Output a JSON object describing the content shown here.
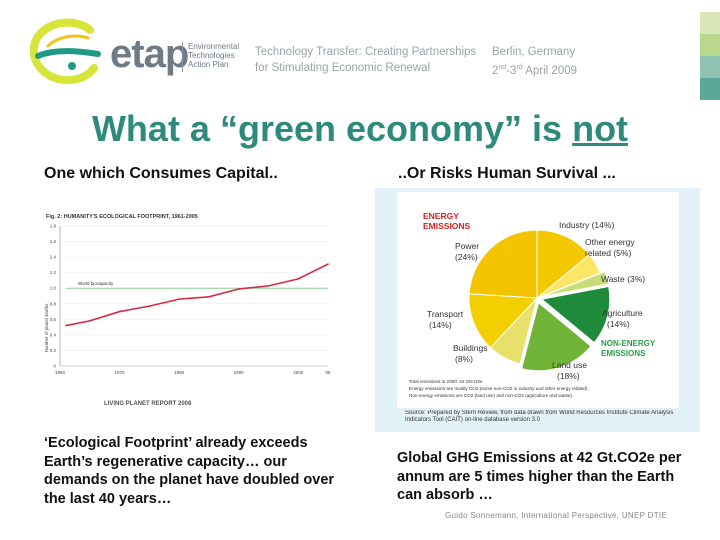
{
  "header": {
    "brand": "etap",
    "brand_sub": [
      "Environmental",
      "Technologies",
      "Action Plan"
    ],
    "tagline": [
      "Technology Transfer: Creating Partnerships",
      "for Stimulating Economic Renewal"
    ],
    "location": "Berlin, Germany",
    "date_day": "2",
    "date_sup1": "nd",
    "date_mid": "-3",
    "date_sup2": "rd",
    "date_rest": " April 2009"
  },
  "slide": {
    "title_main": "What a “green economy” is ",
    "title_emph": "not",
    "left_heading": "One which Consumes Capital..",
    "right_heading": "..Or Risks Human Survival ...",
    "left_paragraph": "‘Ecological Footprint’ already exceeds Earth’s regenerative capacity… our demands on the planet have doubled over the last 40 years…",
    "right_paragraph": "Global GHG Emissions at 42 Gt.CO2e per annum are 5 times higher than the Earth can absorb …",
    "credit": "Guido Sonnemann, International Perspective, UNEP DTIE"
  },
  "footprint_chart": {
    "title": "Fig. 2: HUMANITY'S ECOLOGICAL FOOTPRINT, 1961-2005",
    "ylabel": "Number of planet Earths",
    "capacity_label": "World biocapacity",
    "source": "LIVING PLANET REPORT 2008",
    "yticks": [
      "1.8",
      "1.6",
      "1.4",
      "1.2",
      "1.0",
      "0.8",
      "0.6",
      "0.4",
      "0.2",
      "0"
    ],
    "xticks": [
      "1960",
      "1970",
      "1980",
      "1990",
      "2000",
      "05"
    ]
  },
  "pie_chart": {
    "energy_label": [
      "ENERGY",
      "EMISSIONS"
    ],
    "non_energy_label": [
      "NON-ENERGY",
      "EMISSIONS"
    ],
    "labels": {
      "industry": "Industry (14%)",
      "other": [
        "Other energy",
        "related (5%)"
      ],
      "waste": "Waste (3%)",
      "agriculture": [
        "Agriculture",
        "(14%)"
      ],
      "landuse": [
        "Land use",
        "(18%)"
      ],
      "buildings": [
        "Buildings",
        "(8%)"
      ],
      "transport": [
        "Transport",
        "(14%)"
      ],
      "power": [
        "Power",
        "(24%)"
      ]
    },
    "total_note": "Total emissions in 2000: 42 GtCO2e",
    "note2": "Energy emissions are mostly CO2 (some non-CO2 in industry and other energy related).",
    "note3": "Non-energy emissions are CO2 (land use) and non-CO2 (agriculture and waste).",
    "source": "Source:   Prepared by Stern Review, from data drawn from World Resources Institute Climate Analysis Indicators Tool (CAIT) on-line database version 3.0"
  },
  "chart_data": [
    {
      "type": "line",
      "title": "Fig. 2: HUMANITY'S ECOLOGICAL FOOTPRINT, 1961-2005",
      "xlabel": "",
      "ylabel": "Number of planet Earths",
      "xlim": [
        1960,
        2005
      ],
      "ylim": [
        0,
        1.8
      ],
      "series": [
        {
          "name": "",
          "x": [
            1961,
            1965,
            1970,
            1975,
            1980,
            1985,
            1990,
            1995,
            2000,
            2005
          ],
          "values": [
            0.52,
            0.58,
            0.7,
            0.77,
            0.86,
            0.89,
            0.99,
            1.03,
            1.12,
            1.31
          ]
        },
        {
          "name": "World biocapacity",
          "x": [
            1961,
            2005
          ],
          "values": [
            1.0,
            1.0
          ]
        }
      ]
    },
    {
      "type": "pie",
      "title": "",
      "categories": [
        "Industry",
        "Other energy related",
        "Waste",
        "Agriculture",
        "Land use",
        "Buildings",
        "Transport",
        "Power"
      ],
      "values": [
        14,
        5,
        3,
        14,
        18,
        8,
        14,
        24
      ],
      "colors": [
        "#f4c800",
        "#ffe566",
        "#c8dc7a",
        "#1f8a3a",
        "#6fb437",
        "#e8e06a",
        "#f2d000",
        "#f5c400"
      ]
    }
  ]
}
